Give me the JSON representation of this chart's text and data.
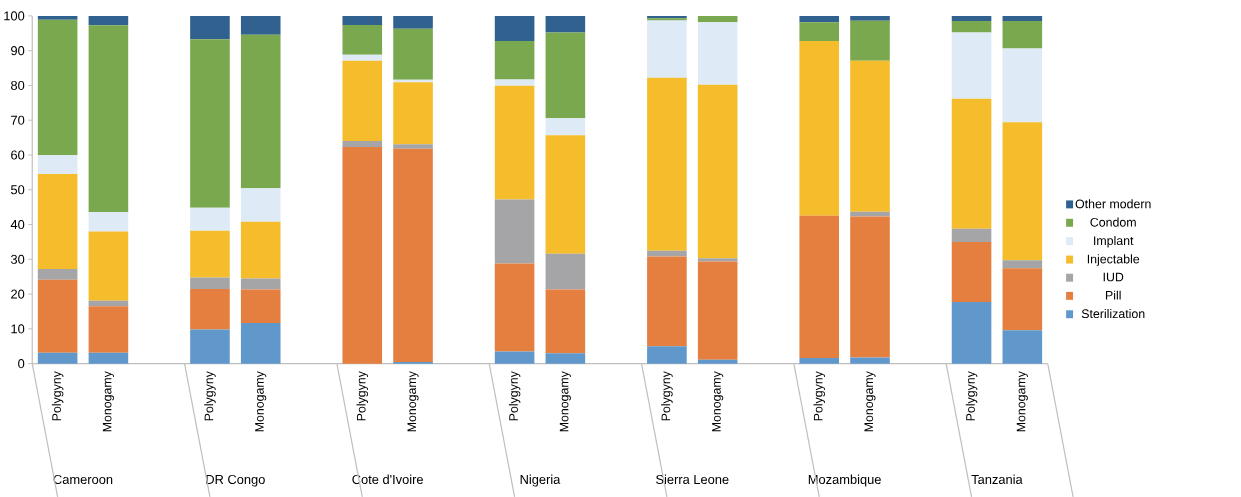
{
  "chart_data": {
    "type": "bar",
    "stacked": true,
    "categories": [
      "Polygyny",
      "Monogamy",
      null,
      "Polygyny",
      "Monogamy",
      null,
      "Polygyny",
      "Monogamy",
      null,
      "Polygyny",
      "Monogamy",
      null,
      "Polygyny",
      "Monogamy",
      null,
      "Polygyny",
      "Monogamy",
      null,
      "Polygyny",
      "Monogamy"
    ],
    "annotations": [
      "Cameroon",
      "DR Congo",
      "Cote d'Ivoire",
      "Nigeria",
      "Sierra Leone",
      "Mozambique",
      "Tanzania"
    ],
    "series": [
      {
        "name": "Sterilization",
        "color": "#6198cb",
        "values": [
          3.1,
          3.1,
          null,
          9.8,
          11.7,
          null,
          0,
          0.5,
          null,
          3.5,
          3.0,
          null,
          5.0,
          1.1,
          null,
          1.6,
          1.8,
          null,
          17.7,
          9.6
        ]
      },
      {
        "name": "Pill",
        "color": "#e57f3f",
        "values": [
          21.0,
          13.4,
          null,
          11.7,
          9.6,
          null,
          62.3,
          61.3,
          null,
          25.3,
          18.3,
          null,
          25.8,
          28.3,
          null,
          40.9,
          40.5,
          null,
          17.3,
          17.8
        ]
      },
      {
        "name": "IUD",
        "color": "#a5a5a8",
        "values": [
          3.1,
          1.6,
          null,
          3.3,
          3.2,
          null,
          1.7,
          1.3,
          null,
          18.4,
          10.3,
          null,
          1.7,
          0.9,
          null,
          0,
          1.4,
          null,
          3.8,
          2.3
        ]
      },
      {
        "name": "Injectable",
        "color": "#f5bc2b",
        "values": [
          27.3,
          19.9,
          null,
          13.4,
          16.3,
          null,
          23.1,
          17.8,
          null,
          32.7,
          34.1,
          null,
          49.7,
          49.9,
          null,
          50.3,
          43.4,
          null,
          37.4,
          39.7
        ]
      },
      {
        "name": "Implant",
        "color": "#deeaf6",
        "values": [
          5.4,
          5.5,
          null,
          6.6,
          9.6,
          null,
          1.7,
          0.7,
          null,
          1.8,
          4.9,
          null,
          16.5,
          18.0,
          null,
          0,
          0,
          null,
          19.0,
          21.2
        ]
      },
      {
        "name": "Condom",
        "color": "#7aa84f",
        "values": [
          39.0,
          53.8,
          null,
          48.5,
          44.2,
          null,
          8.6,
          14.7,
          null,
          11.1,
          24.6,
          null,
          0.6,
          1.8,
          null,
          5.4,
          11.5,
          null,
          3.3,
          7.9
        ]
      },
      {
        "name": "Other modern",
        "color": "#31628f",
        "values": [
          1.1,
          2.7,
          null,
          6.7,
          5.4,
          null,
          2.6,
          3.7,
          null,
          7.2,
          4.8,
          null,
          0.7,
          0,
          null,
          1.8,
          1.4,
          null,
          1.5,
          1.5
        ]
      }
    ],
    "ylim": [
      0,
      100
    ],
    "yticks": [
      0,
      10,
      20,
      30,
      40,
      50,
      60,
      70,
      80,
      90,
      100
    ],
    "grid": false,
    "legend": "right"
  }
}
